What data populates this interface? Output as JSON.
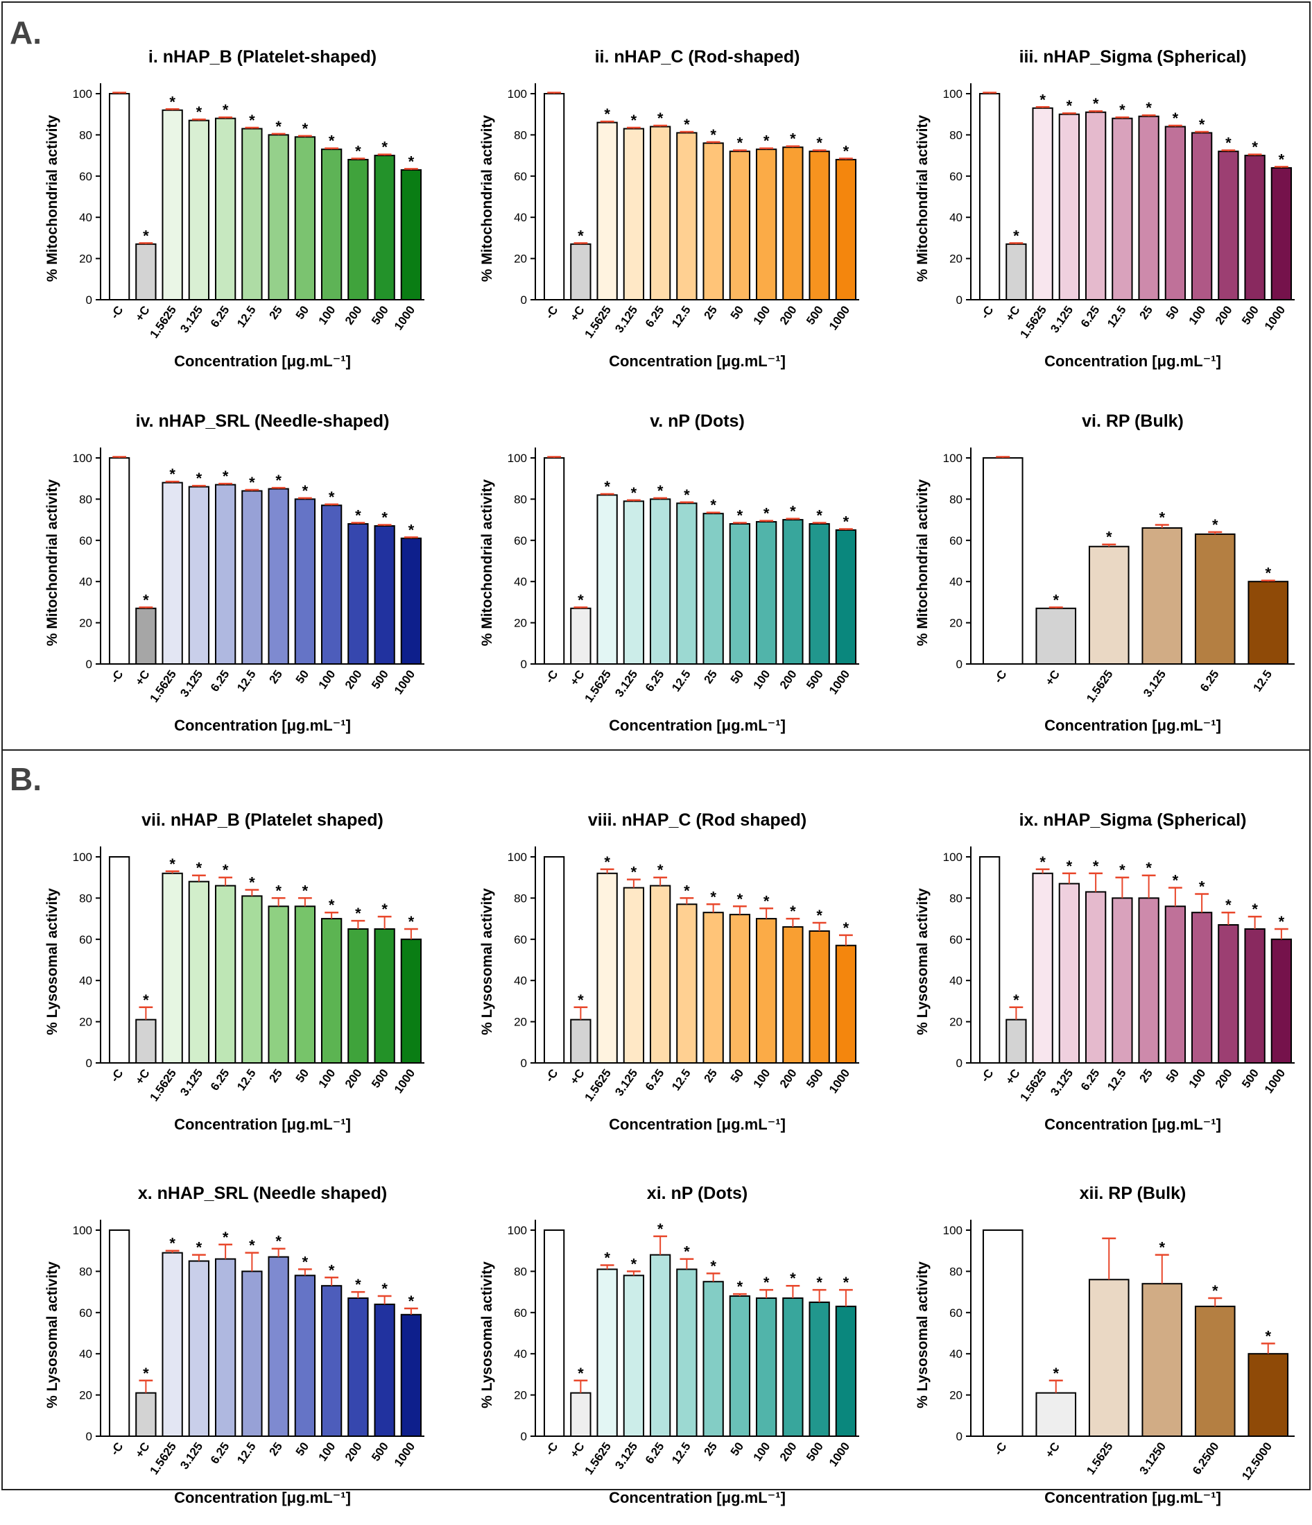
{
  "sections": [
    {
      "label": "A."
    },
    {
      "label": "B."
    }
  ],
  "colors": {
    "error_bar": "#e8472b",
    "star": "#000000",
    "axis": "#000000"
  },
  "chart_data": [
    {
      "type": "bar",
      "title": "i. nHAP_B (Platelet-shaped)",
      "ylabel": "% Mitochondrial activity",
      "xlabel": "Concentration [μg.mL⁻¹]",
      "ylim": [
        0,
        100
      ],
      "yticks": [
        0,
        20,
        40,
        60,
        80,
        100
      ],
      "categories": [
        "-C",
        "+C",
        "1.5625",
        "3.125",
        "6.25",
        "12.5",
        "25",
        "50",
        "100",
        "200",
        "500",
        "1000"
      ],
      "values": [
        100,
        27,
        92,
        87,
        88,
        83,
        80,
        79,
        73,
        68,
        70,
        63
      ],
      "errors": [
        0.5,
        0.5,
        0.5,
        0.5,
        0.5,
        0.5,
        0.5,
        0.5,
        0.5,
        0.5,
        0.5,
        0.5
      ],
      "stars": [
        false,
        true,
        true,
        true,
        true,
        true,
        true,
        true,
        true,
        true,
        true,
        true
      ],
      "colors": [
        "#ffffff",
        "#d3d3d3",
        "#eaf6e6",
        "#d9efd3",
        "#c7e8c0",
        "#aedca5",
        "#95d08b",
        "#7bc370",
        "#5eb356",
        "#40a33c",
        "#23922a",
        "#0a7d14"
      ]
    },
    {
      "type": "bar",
      "title": "ii. nHAP_C (Rod-shaped)",
      "ylabel": "% Mitochondrial activity",
      "xlabel": "Concentration [μg.mL⁻¹]",
      "ylim": [
        0,
        100
      ],
      "yticks": [
        0,
        20,
        40,
        60,
        80,
        100
      ],
      "categories": [
        "-C",
        "+C",
        "1.5625",
        "3.125",
        "6.25",
        "12.5",
        "25",
        "50",
        "100",
        "200",
        "500",
        "1000"
      ],
      "values": [
        100,
        27,
        86,
        83,
        84,
        81,
        76,
        72,
        73,
        74,
        72,
        68
      ],
      "errors": [
        0.5,
        0.5,
        0.5,
        0.5,
        0.5,
        0.5,
        0.5,
        0.5,
        0.5,
        0.5,
        0.5,
        0.5
      ],
      "stars": [
        false,
        true,
        true,
        true,
        true,
        true,
        true,
        true,
        true,
        true,
        true,
        true
      ],
      "colors": [
        "#ffffff",
        "#d3d3d3",
        "#fff3e0",
        "#ffe8c6",
        "#ffdcab",
        "#ffd092",
        "#ffc478",
        "#fdb860",
        "#fbab47",
        "#f99f32",
        "#f7931f",
        "#f4860d"
      ]
    },
    {
      "type": "bar",
      "title": "iii. nHAP_Sigma (Spherical)",
      "ylabel": "% Mitochondrial activity",
      "xlabel": "Concentration [μg.mL⁻¹]",
      "ylim": [
        0,
        100
      ],
      "yticks": [
        0,
        20,
        40,
        60,
        80,
        100
      ],
      "categories": [
        "-C",
        "+C",
        "1.5625",
        "3.125",
        "6.25",
        "12.5",
        "25",
        "50",
        "100",
        "200",
        "500",
        "1000"
      ],
      "values": [
        100,
        27,
        93,
        90,
        91,
        88,
        89,
        84,
        81,
        72,
        70,
        64
      ],
      "errors": [
        0.5,
        0.5,
        0.5,
        0.5,
        0.5,
        0.5,
        0.5,
        0.5,
        0.5,
        0.5,
        0.5,
        0.5
      ],
      "stars": [
        false,
        true,
        true,
        true,
        true,
        true,
        true,
        true,
        true,
        true,
        true,
        true
      ],
      "colors": [
        "#ffffff",
        "#d3d3d3",
        "#f8e6ee",
        "#efd0de",
        "#e5bacd",
        "#d9a2bc",
        "#cd8aab",
        "#bf7199",
        "#af5886",
        "#9c3f72",
        "#89295f",
        "#75124b"
      ]
    },
    {
      "type": "bar",
      "title": "iv. nHAP_SRL (Needle-shaped)",
      "ylabel": "% Mitochondrial activity",
      "xlabel": "Concentration [μg.mL⁻¹]",
      "ylim": [
        0,
        100
      ],
      "yticks": [
        0,
        20,
        40,
        60,
        80,
        100
      ],
      "categories": [
        "-C",
        "+C",
        "1.5625",
        "3.125",
        "6.25",
        "12.5",
        "25",
        "50",
        "100",
        "200",
        "500",
        "1000"
      ],
      "values": [
        100,
        27,
        88,
        86,
        87,
        84,
        85,
        80,
        77,
        68,
        67,
        61
      ],
      "errors": [
        0.5,
        0.5,
        0.5,
        0.5,
        0.5,
        0.5,
        0.5,
        0.5,
        0.5,
        0.5,
        0.5,
        0.5
      ],
      "stars": [
        false,
        true,
        true,
        true,
        true,
        true,
        true,
        true,
        true,
        true,
        true,
        true
      ],
      "colors": [
        "#ffffff",
        "#a6a6a6",
        "#e3e6f3",
        "#c9cfea",
        "#afb8e0",
        "#97a1d6",
        "#7e8ad0",
        "#6574c6",
        "#4d5dbb",
        "#3647ae",
        "#21329f",
        "#0e1f8c"
      ]
    },
    {
      "type": "bar",
      "title": "v. nP (Dots)",
      "ylabel": "% Mitochondrial activity",
      "xlabel": "Concentration [μg.mL⁻¹]",
      "ylim": [
        0,
        100
      ],
      "yticks": [
        0,
        20,
        40,
        60,
        80,
        100
      ],
      "categories": [
        "-C",
        "+C",
        "1.5625",
        "3.125",
        "6.25",
        "12.5",
        "25",
        "50",
        "100",
        "200",
        "500",
        "1000"
      ],
      "values": [
        100,
        27,
        82,
        79,
        80,
        78,
        73,
        68,
        69,
        70,
        68,
        65
      ],
      "errors": [
        0.5,
        0.5,
        0.5,
        0.5,
        0.5,
        0.5,
        0.5,
        0.5,
        0.5,
        0.5,
        0.5,
        0.5
      ],
      "stars": [
        false,
        true,
        true,
        true,
        true,
        true,
        true,
        true,
        true,
        true,
        true,
        true
      ],
      "colors": [
        "#ffffff",
        "#eeeeee",
        "#e3f6f4",
        "#ccede9",
        "#b4e3de",
        "#9cd9d2",
        "#83cdc5",
        "#6ac1b8",
        "#51b4aa",
        "#38a69c",
        "#21978d",
        "#0a877d"
      ]
    },
    {
      "type": "bar",
      "title": "vi. RP (Bulk)",
      "ylabel": "% Mitochondrial activity",
      "xlabel": "Concentration [μg.mL⁻¹]",
      "ylim": [
        0,
        100
      ],
      "yticks": [
        0,
        20,
        40,
        60,
        80,
        100
      ],
      "categories": [
        "-C",
        "+C",
        "1.5625",
        "3.125",
        "6.25",
        "12.5"
      ],
      "values": [
        100,
        27,
        57,
        66,
        63,
        40
      ],
      "errors": [
        0.5,
        0.5,
        1,
        1.5,
        1,
        0.5
      ],
      "stars": [
        false,
        true,
        true,
        true,
        true,
        true
      ],
      "colors": [
        "#ffffff",
        "#d3d3d3",
        "#ead8c4",
        "#d1ac85",
        "#b47f42",
        "#8f4a07"
      ]
    },
    {
      "type": "bar",
      "title": "vii. nHAP_B (Platelet shaped)",
      "ylabel": "% Lysosomal activity",
      "xlabel": "Concentration [μg.mL⁻¹]",
      "ylim": [
        0,
        100
      ],
      "yticks": [
        0,
        20,
        40,
        60,
        80,
        100
      ],
      "categories": [
        "-C",
        "+C",
        "1.5625",
        "3.125",
        "6.25",
        "12.5",
        "25",
        "50",
        "100",
        "200",
        "500",
        "1000"
      ],
      "values": [
        100,
        21,
        92,
        88,
        86,
        81,
        76,
        76,
        70,
        65,
        65,
        60
      ],
      "errors": [
        0,
        6,
        1,
        3,
        4,
        3,
        4,
        4,
        3,
        4,
        6,
        5
      ],
      "stars": [
        false,
        true,
        true,
        true,
        true,
        true,
        true,
        true,
        true,
        true,
        true,
        true
      ],
      "colors": [
        "#ffffff",
        "#d3d3d3",
        "#e6f6e2",
        "#d2eecb",
        "#bee6b5",
        "#a7dc9c",
        "#8fd082",
        "#77c46a",
        "#5cb452",
        "#3fa33b",
        "#239228",
        "#0a7d14"
      ]
    },
    {
      "type": "bar",
      "title": "viii. nHAP_C (Rod shaped)",
      "ylabel": "% Lysosomal activity",
      "xlabel": "Concentration [μg.mL⁻¹]",
      "ylim": [
        0,
        100
      ],
      "yticks": [
        0,
        20,
        40,
        60,
        80,
        100
      ],
      "categories": [
        "-C",
        "+C",
        "1.5625",
        "3.125",
        "6.25",
        "12.5",
        "25",
        "50",
        "100",
        "200",
        "500",
        "1000"
      ],
      "values": [
        100,
        21,
        92,
        85,
        86,
        77,
        73,
        72,
        70,
        66,
        64,
        57
      ],
      "errors": [
        0,
        6,
        2,
        4,
        4,
        3,
        4,
        4,
        5,
        4,
        4,
        5
      ],
      "stars": [
        false,
        true,
        true,
        true,
        true,
        true,
        true,
        true,
        true,
        true,
        true,
        true
      ],
      "colors": [
        "#ffffff",
        "#d3d3d3",
        "#fff3e0",
        "#ffe8c6",
        "#ffdcab",
        "#ffd092",
        "#ffc478",
        "#fdb860",
        "#fbab47",
        "#f99f32",
        "#f7931f",
        "#f4860d"
      ]
    },
    {
      "type": "bar",
      "title": "ix. nHAP_Sigma (Spherical)",
      "ylabel": "% Lysosomal activity",
      "xlabel": "Concentration [μg.mL⁻¹]",
      "ylim": [
        0,
        100
      ],
      "yticks": [
        0,
        20,
        40,
        60,
        80,
        100
      ],
      "categories": [
        "-C",
        "+C",
        "1.5625",
        "3.125",
        "6.25",
        "12.5",
        "25",
        "50",
        "100",
        "200",
        "500",
        "1000"
      ],
      "values": [
        100,
        21,
        92,
        87,
        83,
        80,
        80,
        76,
        73,
        67,
        65,
        60
      ],
      "errors": [
        0,
        6,
        2,
        5,
        9,
        10,
        11,
        9,
        9,
        6,
        6,
        5
      ],
      "stars": [
        false,
        true,
        true,
        true,
        true,
        true,
        true,
        true,
        true,
        true,
        true,
        true
      ],
      "colors": [
        "#ffffff",
        "#d3d3d3",
        "#f8e6ee",
        "#efd0de",
        "#e5bacd",
        "#d9a2bc",
        "#cd8aab",
        "#bf7199",
        "#af5886",
        "#9c3f72",
        "#89295f",
        "#75124b"
      ]
    },
    {
      "type": "bar",
      "title": "x. nHAP_SRL (Needle shaped)",
      "ylabel": "% Lysosomal activity",
      "xlabel": "Concentration [μg.mL⁻¹]",
      "ylim": [
        0,
        100
      ],
      "yticks": [
        0,
        20,
        40,
        60,
        80,
        100
      ],
      "categories": [
        "-C",
        "+C",
        "1.5625",
        "3.125",
        "6.25",
        "12.5",
        "25",
        "50",
        "100",
        "200",
        "500",
        "1000"
      ],
      "values": [
        100,
        21,
        89,
        85,
        86,
        80,
        87,
        78,
        73,
        67,
        64,
        59
      ],
      "errors": [
        0,
        6,
        1,
        3,
        7,
        9,
        4,
        3,
        4,
        3,
        4,
        3
      ],
      "stars": [
        false,
        true,
        true,
        true,
        true,
        true,
        true,
        true,
        true,
        true,
        true,
        true
      ],
      "colors": [
        "#ffffff",
        "#d3d3d3",
        "#e3e6f3",
        "#c9cfea",
        "#afb8e0",
        "#97a1d6",
        "#7e8ad0",
        "#6574c6",
        "#4d5dbb",
        "#3647ae",
        "#21329f",
        "#0e1f8c"
      ]
    },
    {
      "type": "bar",
      "title": "xi. nP (Dots)",
      "ylabel": "% Lysosomal activity",
      "xlabel": "Concentration [μg.mL⁻¹]",
      "ylim": [
        0,
        100
      ],
      "yticks": [
        0,
        20,
        40,
        60,
        80,
        100
      ],
      "categories": [
        "-C",
        "+C",
        "1.5625",
        "3.125",
        "6.25",
        "12.5",
        "25",
        "50",
        "100",
        "200",
        "500",
        "1000"
      ],
      "values": [
        100,
        21,
        81,
        78,
        88,
        81,
        75,
        68,
        67,
        67,
        65,
        63
      ],
      "errors": [
        0,
        6,
        2,
        2,
        9,
        5,
        4,
        1,
        4,
        6,
        6,
        8
      ],
      "stars": [
        false,
        true,
        true,
        true,
        true,
        true,
        true,
        true,
        true,
        true,
        true,
        true
      ],
      "colors": [
        "#ffffff",
        "#eeeeee",
        "#e3f6f4",
        "#ccede9",
        "#b4e3de",
        "#9cd9d2",
        "#83cdc5",
        "#6ac1b8",
        "#51b4aa",
        "#38a69c",
        "#21978d",
        "#0a877d"
      ]
    },
    {
      "type": "bar",
      "title": "xii. RP (Bulk)",
      "ylabel": "% Lysosomal activity",
      "xlabel": "Concentration [μg.mL⁻¹]",
      "ylim": [
        0,
        100
      ],
      "yticks": [
        0,
        20,
        40,
        60,
        80,
        100
      ],
      "categories": [
        "-C",
        "+C",
        "1.5625",
        "3.1250",
        "6.2500",
        "12.5000"
      ],
      "values": [
        100,
        21,
        76,
        74,
        63,
        40
      ],
      "errors": [
        0,
        6,
        20,
        14,
        4,
        5
      ],
      "stars": [
        false,
        true,
        false,
        true,
        true,
        true
      ],
      "colors": [
        "#ffffff",
        "#eeeeee",
        "#ead8c4",
        "#d1ac85",
        "#b47f42",
        "#8f4a07"
      ]
    }
  ]
}
